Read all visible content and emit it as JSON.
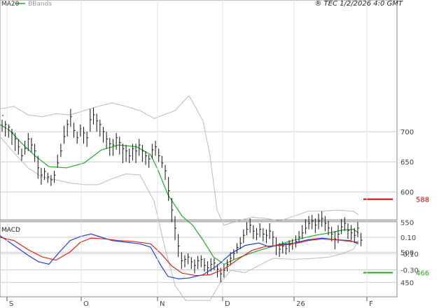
{
  "header": {
    "legend_ma": "MA20",
    "legend_bb": "BBands",
    "stamp": "® TEC 1/2/2026 4:0 GMT"
  },
  "colors": {
    "ma": "#22aa22",
    "bbands": "#bbbbbb",
    "price": "#111111",
    "macd": "#1f3fd8",
    "signal": "#dd2222",
    "grid": "#cccccc",
    "resistance": "#cc0000",
    "support": "#22aa22"
  },
  "chart_data": [
    {
      "type": "ohlc",
      "x_labels": [
        "S",
        "O",
        "N",
        "D",
        "26",
        "F"
      ],
      "y_ticks": [
        450,
        500,
        550,
        600,
        650,
        700
      ],
      "ylim": [
        410,
        750
      ],
      "levels": [
        {
          "name": "resistance",
          "label": "588",
          "value": 588
        },
        {
          "name": "support",
          "label": "466",
          "value": 466
        }
      ],
      "legend": [
        "MA20",
        "BBands"
      ],
      "series": {
        "bars": [
          [
            727,
            720,
            700
          ],
          [
            712,
            718,
            692
          ],
          [
            708,
            712,
            690
          ],
          [
            698,
            705,
            678
          ],
          [
            688,
            698,
            668
          ],
          [
            675,
            688,
            662
          ],
          [
            660,
            672,
            652
          ],
          [
            672,
            685,
            662
          ],
          [
            688,
            698,
            668
          ],
          [
            678,
            690,
            666
          ],
          [
            668,
            680,
            650
          ],
          [
            640,
            660,
            622
          ],
          [
            628,
            640,
            612
          ],
          [
            634,
            640,
            620
          ],
          [
            625,
            632,
            615
          ],
          [
            620,
            628,
            610
          ],
          [
            628,
            635,
            615
          ],
          [
            648,
            662,
            640
          ],
          [
            668,
            680,
            658
          ],
          [
            692,
            710,
            680
          ],
          [
            712,
            720,
            692
          ],
          [
            725,
            738,
            708
          ],
          [
            702,
            715,
            690
          ],
          [
            690,
            700,
            680
          ],
          [
            705,
            712,
            692
          ],
          [
            698,
            708,
            680
          ],
          [
            690,
            700,
            675
          ],
          [
            720,
            738,
            700
          ],
          [
            728,
            740,
            712
          ],
          [
            718,
            730,
            700
          ],
          [
            712,
            720,
            692
          ],
          [
            700,
            708,
            682
          ],
          [
            688,
            700,
            672
          ],
          [
            680,
            690,
            660
          ],
          [
            678,
            688,
            660
          ],
          [
            690,
            698,
            670
          ],
          [
            682,
            692,
            662
          ],
          [
            672,
            680,
            648
          ],
          [
            668,
            678,
            650
          ],
          [
            660,
            672,
            648
          ],
          [
            672,
            680,
            652
          ],
          [
            668,
            680,
            648
          ],
          [
            678,
            688,
            660
          ],
          [
            668,
            678,
            650
          ],
          [
            660,
            668,
            645
          ],
          [
            655,
            662,
            640
          ],
          [
            670,
            680,
            655
          ],
          [
            675,
            685,
            660
          ],
          [
            660,
            672,
            650
          ],
          [
            648,
            660,
            640
          ],
          [
            635,
            645,
            620
          ],
          [
            602,
            625,
            585
          ],
          [
            570,
            590,
            550
          ],
          [
            540,
            560,
            520
          ],
          [
            510,
            530,
            492
          ],
          [
            486,
            500,
            472
          ],
          [
            488,
            495,
            475
          ],
          [
            492,
            498,
            480
          ],
          [
            484,
            492,
            472
          ],
          [
            478,
            488,
            465
          ],
          [
            486,
            494,
            472
          ],
          [
            488,
            495,
            475
          ],
          [
            478,
            490,
            468
          ],
          [
            474,
            485,
            462
          ],
          [
            480,
            490,
            468
          ],
          [
            482,
            490,
            470
          ],
          [
            472,
            480,
            458
          ],
          [
            464,
            474,
            450
          ],
          [
            470,
            480,
            458
          ],
          [
            480,
            488,
            468
          ],
          [
            490,
            500,
            478
          ],
          [
            498,
            505,
            488
          ],
          [
            508,
            515,
            498
          ],
          [
            515,
            525,
            505
          ],
          [
            528,
            538,
            515
          ],
          [
            538,
            550,
            528
          ],
          [
            545,
            556,
            532
          ],
          [
            535,
            545,
            522
          ],
          [
            530,
            540,
            520
          ],
          [
            538,
            548,
            525
          ],
          [
            530,
            540,
            518
          ],
          [
            528,
            538,
            515
          ],
          [
            535,
            548,
            522
          ],
          [
            525,
            535,
            510
          ],
          [
            512,
            525,
            495
          ],
          [
            505,
            515,
            492
          ],
          [
            510,
            518,
            498
          ],
          [
            506,
            515,
            496
          ],
          [
            512,
            520,
            500
          ],
          [
            514,
            522,
            504
          ],
          [
            518,
            528,
            508
          ],
          [
            525,
            535,
            515
          ],
          [
            532,
            545,
            522
          ],
          [
            540,
            555,
            530
          ],
          [
            548,
            560,
            538
          ],
          [
            552,
            562,
            538
          ],
          [
            545,
            556,
            532
          ],
          [
            552,
            564,
            538
          ],
          [
            556,
            568,
            542
          ],
          [
            548,
            560,
            535
          ],
          [
            540,
            552,
            528
          ],
          [
            530,
            542,
            518
          ],
          [
            522,
            535,
            505
          ],
          [
            530,
            545,
            515
          ],
          [
            542,
            555,
            530
          ],
          [
            548,
            558,
            535
          ],
          [
            536,
            548,
            522
          ],
          [
            532,
            545,
            520
          ],
          [
            528,
            540,
            515
          ],
          [
            540,
            550,
            525
          ],
          [
            520,
            532,
            510
          ]
        ],
        "ma20": [
          [
            0,
            712
          ],
          [
            14,
            702
          ],
          [
            30,
            682
          ],
          [
            50,
            660
          ],
          [
            70,
            642
          ],
          [
            95,
            640
          ],
          [
            120,
            648
          ],
          [
            145,
            670
          ],
          [
            170,
            678
          ],
          [
            195,
            675
          ],
          [
            215,
            662
          ],
          [
            225,
            638
          ],
          [
            240,
            595
          ],
          [
            260,
            560
          ],
          [
            275,
            545
          ],
          [
            290,
            520
          ],
          [
            305,
            492
          ],
          [
            320,
            480
          ],
          [
            335,
            488
          ],
          [
            350,
            495
          ],
          [
            370,
            503
          ],
          [
            390,
            510
          ],
          [
            420,
            520
          ],
          [
            450,
            528
          ],
          [
            470,
            532
          ],
          [
            490,
            537
          ],
          [
            505,
            538
          ],
          [
            512,
            532
          ]
        ],
        "bb_upper": [
          [
            0,
            738
          ],
          [
            20,
            742
          ],
          [
            40,
            728
          ],
          [
            60,
            725
          ],
          [
            80,
            730
          ],
          [
            100,
            728
          ],
          [
            120,
            735
          ],
          [
            140,
            742
          ],
          [
            160,
            748
          ],
          [
            180,
            742
          ],
          [
            200,
            735
          ],
          [
            220,
            722
          ],
          [
            250,
            735
          ],
          [
            270,
            760
          ],
          [
            290,
            718
          ],
          [
            300,
            660
          ],
          [
            310,
            570
          ],
          [
            320,
            545
          ],
          [
            340,
            552
          ],
          [
            360,
            558
          ],
          [
            380,
            556
          ],
          [
            400,
            552
          ],
          [
            420,
            560
          ],
          [
            440,
            568
          ],
          [
            460,
            568
          ],
          [
            480,
            570
          ],
          [
            505,
            568
          ],
          [
            512,
            562
          ]
        ],
        "bb_lower": [
          [
            0,
            692
          ],
          [
            20,
            665
          ],
          [
            40,
            640
          ],
          [
            60,
            625
          ],
          [
            80,
            620
          ],
          [
            100,
            615
          ],
          [
            120,
            612
          ],
          [
            140,
            612
          ],
          [
            160,
            622
          ],
          [
            180,
            630
          ],
          [
            200,
            628
          ],
          [
            220,
            585
          ],
          [
            235,
            510
          ],
          [
            250,
            445
          ],
          [
            265,
            420
          ],
          [
            280,
            420
          ],
          [
            300,
            420
          ],
          [
            315,
            450
          ],
          [
            330,
            470
          ],
          [
            350,
            466
          ],
          [
            370,
            478
          ],
          [
            390,
            490
          ],
          [
            420,
            488
          ],
          [
            450,
            490
          ],
          [
            470,
            492
          ],
          [
            490,
            498
          ],
          [
            505,
            505
          ],
          [
            512,
            520
          ]
        ]
      }
    },
    {
      "type": "line",
      "title": "MACD",
      "x_labels": [
        "S",
        "O",
        "N",
        "D",
        "26",
        "F"
      ],
      "y_ticks": [
        10,
        -10,
        -30
      ],
      "y_tick_labels": [
        "0.10",
        "-0.10",
        "-0.30"
      ],
      "ylim": [
        -42,
        18
      ],
      "series": [
        {
          "name": "macd",
          "points": [
            [
              0,
              12
            ],
            [
              20,
              0
            ],
            [
              40,
              -12
            ],
            [
              55,
              -20
            ],
            [
              70,
              -23
            ],
            [
              85,
              -8
            ],
            [
              100,
              6
            ],
            [
              115,
              11
            ],
            [
              130,
              14
            ],
            [
              145,
              10
            ],
            [
              160,
              6
            ],
            [
              180,
              4
            ],
            [
              200,
              2
            ],
            [
              215,
              -2
            ],
            [
              230,
              -25
            ],
            [
              240,
              -38
            ],
            [
              255,
              -41
            ],
            [
              270,
              -40
            ],
            [
              290,
              -36
            ],
            [
              310,
              -25
            ],
            [
              330,
              -10
            ],
            [
              350,
              0
            ],
            [
              370,
              3
            ],
            [
              385,
              -2
            ],
            [
              400,
              1
            ],
            [
              420,
              3
            ],
            [
              440,
              7
            ],
            [
              460,
              9
            ],
            [
              480,
              7
            ],
            [
              500,
              6
            ],
            [
              512,
              2
            ]
          ]
        },
        {
          "name": "signal",
          "points": [
            [
              0,
              10
            ],
            [
              20,
              6
            ],
            [
              40,
              -5
            ],
            [
              60,
              -14
            ],
            [
              80,
              -18
            ],
            [
              100,
              -8
            ],
            [
              115,
              4
            ],
            [
              130,
              9
            ],
            [
              150,
              8
            ],
            [
              170,
              6
            ],
            [
              190,
              5
            ],
            [
              215,
              2
            ],
            [
              230,
              -10
            ],
            [
              245,
              -25
            ],
            [
              260,
              -34
            ],
            [
              280,
              -37
            ],
            [
              300,
              -36
            ],
            [
              320,
              -29
            ],
            [
              340,
              -17
            ],
            [
              360,
              -6
            ],
            [
              380,
              -1
            ],
            [
              400,
              0
            ],
            [
              420,
              2
            ],
            [
              440,
              6
            ],
            [
              460,
              8
            ],
            [
              480,
              7
            ],
            [
              500,
              5
            ],
            [
              512,
              4
            ]
          ]
        }
      ]
    }
  ]
}
